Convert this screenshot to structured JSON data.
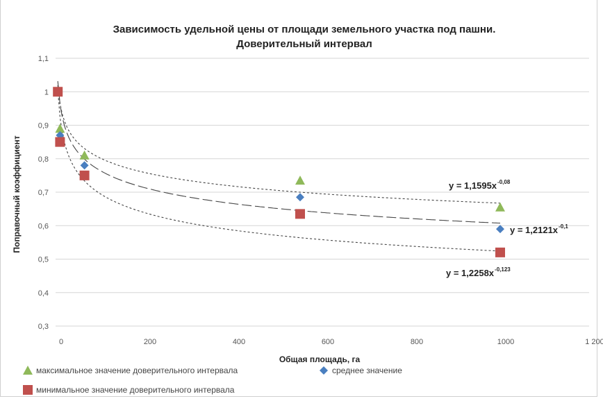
{
  "chart_data": {
    "type": "scatter",
    "title": "Зависимость удельной цены от площади земельного участка под пашни.",
    "subtitle": "Доверительный интервал",
    "xlabel": "Общая площадь, га",
    "ylabel": "Поправочный коэффициент",
    "xlim": [
      0,
      1200
    ],
    "ylim": [
      0.3,
      1.1
    ],
    "x_ticks": [
      "0",
      "200",
      "400",
      "600",
      "800",
      "1000",
      "1 200"
    ],
    "y_ticks": [
      "0,3",
      "0,4",
      "0,5",
      "0,6",
      "0,7",
      "0,8",
      "0,9",
      "1",
      "1,1"
    ],
    "grid": true,
    "legend_position": "bottom",
    "series": [
      {
        "name": "максимальное значение доверительного интервала",
        "marker": "triangle",
        "color": "#8fb95a",
        "x": [
          10,
          65,
          550,
          1000
        ],
        "y": [
          0.89,
          0.81,
          0.735,
          0.655
        ],
        "trend": {
          "a": 1.1595,
          "b": -0.08,
          "label": "y = 1,1595x",
          "exp": "-0,08"
        }
      },
      {
        "name": "среднее значение",
        "marker": "diamond",
        "color": "#4a7fc0",
        "x": [
          10,
          65,
          550,
          1000
        ],
        "y": [
          0.87,
          0.78,
          0.685,
          0.59
        ],
        "trend": {
          "a": 1.2121,
          "b": -0.1,
          "label": "y = 1,2121x",
          "exp": "-0,1"
        }
      },
      {
        "name": "минимальное значение доверительного интервала",
        "marker": "square",
        "color": "#c0504d",
        "x": [
          5,
          10,
          65,
          550,
          1000
        ],
        "y": [
          1.0,
          0.85,
          0.75,
          0.635,
          0.52
        ],
        "trend": {
          "a": 1.2258,
          "b": -0.123,
          "label": "y = 1,2258x",
          "exp": "-0,123"
        }
      }
    ]
  }
}
